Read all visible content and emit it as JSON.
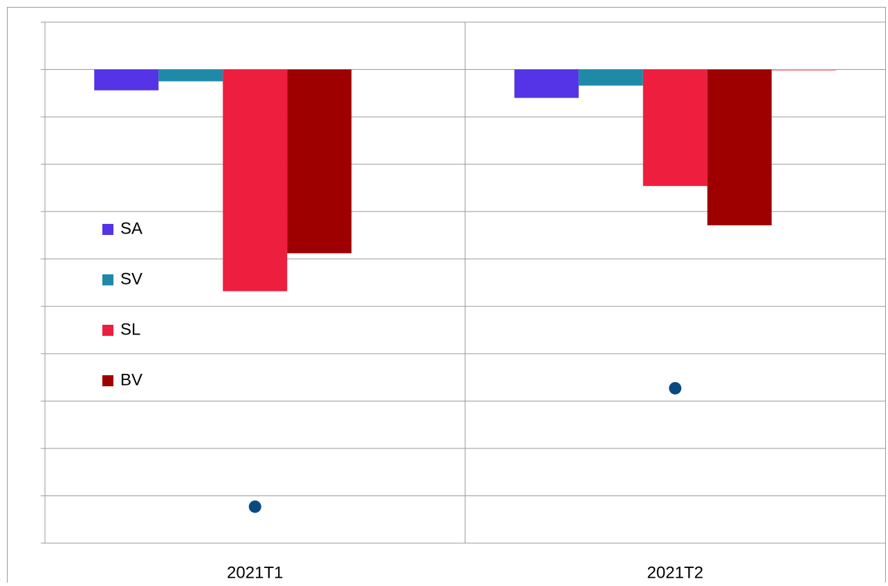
{
  "chart_data": {
    "type": "bar",
    "categories": [
      "2021T1",
      "2021T2"
    ],
    "series": [
      {
        "name": "SA",
        "color": "#5533e6",
        "values": [
          -0.44,
          -0.6
        ]
      },
      {
        "name": "SV",
        "color": "#1f8aa8",
        "values": [
          -0.25,
          -0.34
        ]
      },
      {
        "name": "SL",
        "color": "#ee1e3e",
        "values": [
          -4.68,
          -2.46
        ]
      },
      {
        "name": "BV",
        "color": "#9e0000",
        "values": [
          -3.88,
          -3.29
        ]
      },
      {
        "color": "#f4a0a8",
        "values": [
          null,
          -0.03
        ]
      }
    ],
    "points": {
      "color": "#0b4a80",
      "values": [
        -9.23,
        -6.73
      ]
    },
    "ylim": [
      -10,
      1
    ],
    "yticks": [
      -10,
      -9,
      -8,
      -7,
      -6,
      -5,
      -4,
      -3,
      -2,
      -1,
      0,
      1
    ],
    "grid": true
  }
}
